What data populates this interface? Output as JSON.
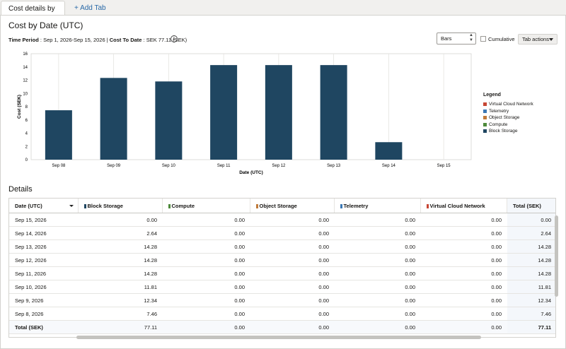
{
  "tabs": {
    "active_label": "Cost details by date",
    "add_label": "+ Add Tab"
  },
  "header": {
    "title": "Cost by Date (UTC)",
    "time_period_label": "Time Period",
    "time_period_value": "Sep 1, 2026-Sep 15, 2026",
    "cost_to_date_label": "Cost To Date",
    "cost_to_date_value": "SEK 77.11 (SEK)"
  },
  "controls": {
    "chart_type_selected": "Bars",
    "cumulative_label": "Cumulative",
    "cumulative_checked": false,
    "tab_actions_label": "Tab actions"
  },
  "chart_data": {
    "type": "bar",
    "categories": [
      "Sep 08",
      "Sep 09",
      "Sep 10",
      "Sep 11",
      "Sep 12",
      "Sep 13",
      "Sep 14",
      "Sep 15"
    ],
    "series": [
      {
        "name": "Block Storage",
        "color": "#1f4661",
        "values": [
          7.46,
          12.34,
          11.81,
          14.28,
          14.28,
          14.28,
          2.64,
          0.0
        ]
      }
    ],
    "xlabel": "Date (UTC)",
    "ylabel": "Cost (SEK)",
    "ylim": [
      0,
      16
    ],
    "yticks": [
      "0",
      "2",
      "4",
      "6",
      "8",
      "10",
      "12",
      "14",
      "16"
    ],
    "grid": "vertical",
    "legend_placement": "right"
  },
  "legend": {
    "title": "Legend",
    "items": [
      {
        "label": "Virtual Cloud Network",
        "color": "#c74634"
      },
      {
        "label": "Telemetry",
        "color": "#3b78b5"
      },
      {
        "label": "Object Storage",
        "color": "#c07a3a"
      },
      {
        "label": "Compute",
        "color": "#4d8a3a"
      },
      {
        "label": "Block Storage",
        "color": "#1f4661"
      }
    ]
  },
  "details": {
    "title": "Details",
    "columns": [
      {
        "label": "Date (UTC)"
      },
      {
        "label": "Block Storage",
        "color": "#1f4661"
      },
      {
        "label": "Compute",
        "color": "#4d8a3a"
      },
      {
        "label": "Object Storage",
        "color": "#c07a3a"
      },
      {
        "label": "Telemetry",
        "color": "#3b78b5"
      },
      {
        "label": "Virtual Cloud Network",
        "color": "#c74634"
      },
      {
        "label": "Total (SEK)"
      }
    ],
    "rows": [
      [
        "Sep 15, 2026",
        "0.00",
        "0.00",
        "0.00",
        "0.00",
        "0.00",
        "0.00"
      ],
      [
        "Sep 14, 2026",
        "2.64",
        "0.00",
        "0.00",
        "0.00",
        "0.00",
        "2.64"
      ],
      [
        "Sep 13, 2026",
        "14.28",
        "0.00",
        "0.00",
        "0.00",
        "0.00",
        "14.28"
      ],
      [
        "Sep 12, 2026",
        "14.28",
        "0.00",
        "0.00",
        "0.00",
        "0.00",
        "14.28"
      ],
      [
        "Sep 11, 2026",
        "14.28",
        "0.00",
        "0.00",
        "0.00",
        "0.00",
        "14.28"
      ],
      [
        "Sep 10, 2026",
        "11.81",
        "0.00",
        "0.00",
        "0.00",
        "0.00",
        "11.81"
      ],
      [
        "Sep 9, 2026",
        "12.34",
        "0.00",
        "0.00",
        "0.00",
        "0.00",
        "12.34"
      ],
      [
        "Sep 8, 2026",
        "7.46",
        "0.00",
        "0.00",
        "0.00",
        "0.00",
        "7.46"
      ]
    ],
    "total_row": [
      "Total (SEK)",
      "77.11",
      "0.00",
      "0.00",
      "0.00",
      "0.00",
      "77.11"
    ]
  }
}
